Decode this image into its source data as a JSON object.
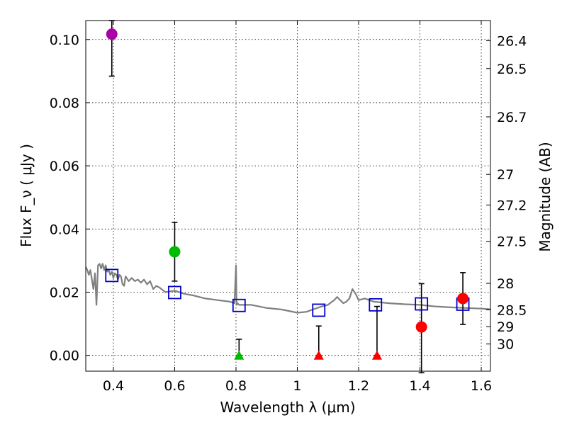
{
  "chart_data": {
    "type": "scatter",
    "title": "",
    "xlabel": "Wavelength  λ (μm)",
    "ylabel": "Flux  F_ν  ( μJy )",
    "ylabel_right": "Magnitude (AB)",
    "xlim": [
      0.31,
      1.63
    ],
    "ylim": [
      -0.005,
      0.106
    ],
    "x_ticks": [
      {
        "value": 0.4,
        "label": "0.4"
      },
      {
        "value": 0.6,
        "label": "0.6"
      },
      {
        "value": 0.8,
        "label": "0.8"
      },
      {
        "value": 1.0,
        "label": "1"
      },
      {
        "value": 1.2,
        "label": "1.2"
      },
      {
        "value": 1.4,
        "label": "1.4"
      },
      {
        "value": 1.6,
        "label": "1.6"
      }
    ],
    "y_ticks": [
      {
        "value": 0.0,
        "label": "0.00"
      },
      {
        "value": 0.02,
        "label": "0.02"
      },
      {
        "value": 0.04,
        "label": "0.04"
      },
      {
        "value": 0.06,
        "label": "0.06"
      },
      {
        "value": 0.08,
        "label": "0.08"
      },
      {
        "value": 0.1,
        "label": "0.10"
      }
    ],
    "right_ticks": [
      {
        "label": "26.4",
        "flux": 0.0996
      },
      {
        "label": "26.5",
        "flux": 0.0908
      },
      {
        "label": "26.7",
        "flux": 0.0755
      },
      {
        "label": "27",
        "flux": 0.0573
      },
      {
        "label": "27.2",
        "flux": 0.0476
      },
      {
        "label": "27.5",
        "flux": 0.0361
      },
      {
        "label": "28",
        "flux": 0.0228
      },
      {
        "label": "28.5",
        "flux": 0.0144
      },
      {
        "label": "29",
        "flux": 0.0091
      },
      {
        "label": "30",
        "flux": 0.0036
      }
    ],
    "model_spectrum": {
      "color": "#808080",
      "x": [
        0.31,
        0.315,
        0.32,
        0.325,
        0.33,
        0.335,
        0.34,
        0.345,
        0.35,
        0.355,
        0.36,
        0.365,
        0.37,
        0.375,
        0.38,
        0.385,
        0.39,
        0.395,
        0.4,
        0.405,
        0.41,
        0.415,
        0.42,
        0.425,
        0.43,
        0.435,
        0.44,
        0.45,
        0.46,
        0.47,
        0.48,
        0.49,
        0.5,
        0.51,
        0.52,
        0.53,
        0.54,
        0.55,
        0.57,
        0.6,
        0.63,
        0.66,
        0.7,
        0.74,
        0.78,
        0.795,
        0.8,
        0.802,
        0.805,
        0.81,
        0.85,
        0.9,
        0.95,
        1.0,
        1.03,
        1.05,
        1.08,
        1.1,
        1.12,
        1.13,
        1.14,
        1.15,
        1.16,
        1.17,
        1.18,
        1.19,
        1.2,
        1.22,
        1.25,
        1.3,
        1.35,
        1.4,
        1.45,
        1.5,
        1.55,
        1.6,
        1.63
      ],
      "y": [
        0.028,
        0.027,
        0.0255,
        0.027,
        0.024,
        0.021,
        0.026,
        0.016,
        0.0285,
        0.029,
        0.0275,
        0.029,
        0.027,
        0.0285,
        0.0265,
        0.027,
        0.0255,
        0.0265,
        0.0245,
        0.026,
        0.0255,
        0.024,
        0.0255,
        0.025,
        0.0225,
        0.022,
        0.025,
        0.0235,
        0.0245,
        0.0235,
        0.024,
        0.023,
        0.024,
        0.0225,
        0.0235,
        0.021,
        0.022,
        0.0215,
        0.02,
        0.0205,
        0.0195,
        0.019,
        0.018,
        0.0175,
        0.017,
        0.0165,
        0.0285,
        0.016,
        0.0165,
        0.016,
        0.016,
        0.015,
        0.0145,
        0.0135,
        0.0138,
        0.0145,
        0.0155,
        0.016,
        0.0175,
        0.0185,
        0.0175,
        0.0165,
        0.017,
        0.018,
        0.021,
        0.0195,
        0.0175,
        0.018,
        0.017,
        0.0165,
        0.0162,
        0.016,
        0.0155,
        0.0152,
        0.015,
        0.0148,
        0.0146
      ]
    },
    "model_points": {
      "marker": "open-square",
      "color": "#0000cc",
      "points": [
        {
          "x": 0.395,
          "y": 0.0253
        },
        {
          "x": 0.6,
          "y": 0.0199
        },
        {
          "x": 0.81,
          "y": 0.0158
        },
        {
          "x": 1.07,
          "y": 0.0143
        },
        {
          "x": 1.255,
          "y": 0.016
        },
        {
          "x": 1.405,
          "y": 0.0163
        },
        {
          "x": 1.54,
          "y": 0.0162
        }
      ]
    },
    "detections": [
      {
        "x": 0.395,
        "y": 0.1017,
        "err_low": 0.0133,
        "err_high": 0.0043,
        "color": "#aa00aa"
      },
      {
        "x": 0.6,
        "y": 0.0328,
        "err_low": 0.0093,
        "err_high": 0.0093,
        "color": "#00bb00"
      },
      {
        "x": 1.405,
        "y": 0.009,
        "err_low": 0.0145,
        "err_high": 0.0137,
        "color": "#ff0000"
      },
      {
        "x": 1.54,
        "y": 0.018,
        "err_low": 0.0082,
        "err_high": 0.0082,
        "color": "#ff0000"
      }
    ],
    "upper_limits": [
      {
        "x": 0.81,
        "y": 0.0,
        "err_high": 0.0051,
        "color": "#00bb00"
      },
      {
        "x": 1.07,
        "y": 0.0,
        "err_high": 0.0093,
        "color": "#ff0000"
      },
      {
        "x": 1.26,
        "y": 0.0,
        "err_high": 0.0155,
        "color": "#ff0000"
      }
    ]
  }
}
